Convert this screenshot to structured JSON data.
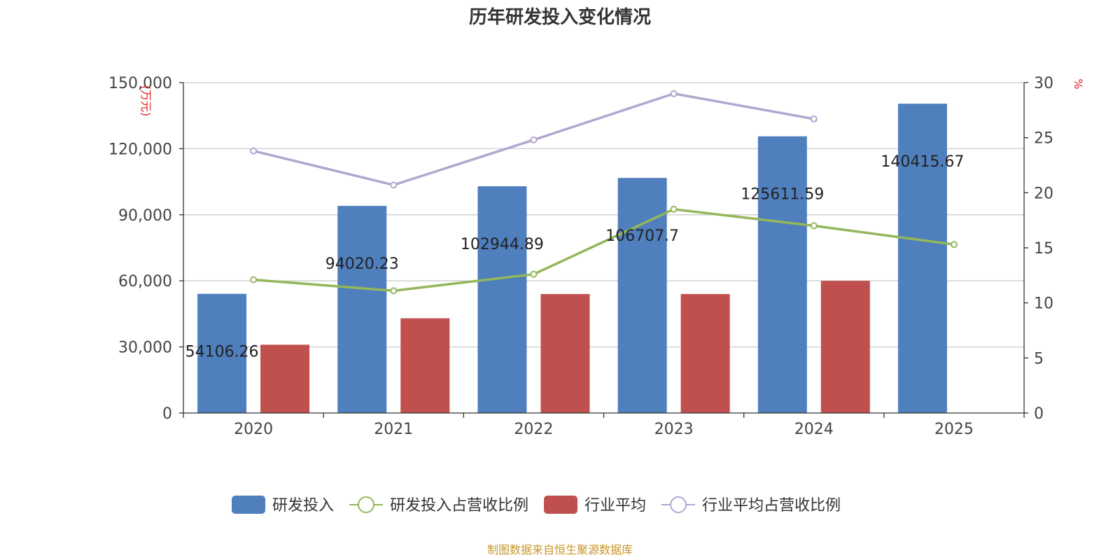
{
  "chart_data": {
    "type": "bar",
    "title": "历年研发投入变化情况",
    "categories": [
      "2020",
      "2021",
      "2022",
      "2023",
      "2024",
      "2025"
    ],
    "y_left": {
      "unit_label": "(万元)",
      "ylim": [
        0,
        150000
      ],
      "ticks": [
        0,
        30000,
        60000,
        90000,
        120000,
        150000
      ],
      "tick_labels": [
        "0",
        "30,000",
        "60,000",
        "90,000",
        "120,000",
        "150,000"
      ]
    },
    "y_right": {
      "unit_label": "%",
      "ylim": [
        0,
        30
      ],
      "ticks": [
        0,
        5,
        10,
        15,
        20,
        25,
        30
      ],
      "tick_labels": [
        "0",
        "5",
        "10",
        "15",
        "20",
        "25",
        "30"
      ]
    },
    "series": [
      {
        "name": "研发投入",
        "kind": "bar",
        "axis": "left",
        "color": "#4f7fbd",
        "values": [
          54106.26,
          94020.23,
          102944.89,
          106707.7,
          125611.59,
          140415.67
        ],
        "labels": [
          "54106.26",
          "94020.23",
          "102944.89",
          "106707.7",
          "125611.59",
          "140415.67"
        ]
      },
      {
        "name": "研发投入占营收比例",
        "kind": "line",
        "axis": "right",
        "color": "#93b75b",
        "values": [
          12.1,
          11.1,
          12.6,
          18.5,
          17.0,
          15.3
        ]
      },
      {
        "name": "行业平均",
        "kind": "bar",
        "axis": "left",
        "color": "#c0504d",
        "values": [
          31000,
          43000,
          54000,
          54000,
          60000,
          null
        ]
      },
      {
        "name": "行业平均占营收比例",
        "kind": "line",
        "axis": "right",
        "color": "#b3a6cf",
        "values": [
          23.8,
          20.7,
          24.8,
          29.0,
          26.7,
          null
        ]
      }
    ],
    "grid": true,
    "legend_position": "bottom",
    "source_note": "制图数据来自恒生聚源数据库"
  }
}
